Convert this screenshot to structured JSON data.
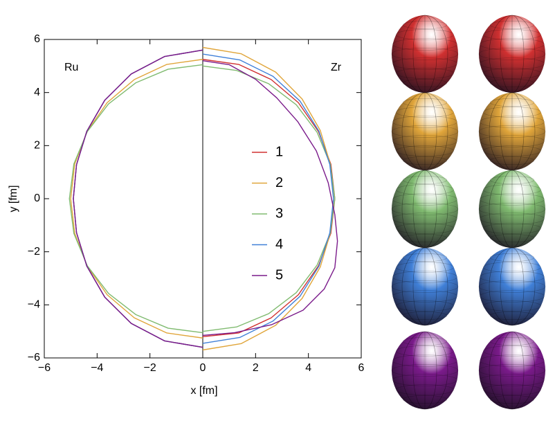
{
  "chart_data": {
    "type": "line",
    "ru_label": "Ru",
    "zr_label": "Zr",
    "xlabel": "x [fm]",
    "ylabel": "y [fm]",
    "xlim": [
      -6,
      6
    ],
    "ylim": [
      -6,
      6
    ],
    "xticks": [
      {
        "value": -6,
        "label": "−6"
      },
      {
        "value": -4,
        "label": "−4"
      },
      {
        "value": -2,
        "label": "−2"
      },
      0,
      2,
      4,
      6
    ],
    "yticks": [
      {
        "value": -6,
        "label": "−6"
      },
      {
        "value": -4,
        "label": "−4"
      },
      {
        "value": -2,
        "label": "−2"
      },
      0,
      2,
      4,
      6
    ],
    "series": [
      {
        "name": "1",
        "color": "#d03030",
        "ru_x": [
          0,
          -1.44,
          -2.71,
          -3.71,
          -4.39,
          -4.78,
          -4.9,
          -4.78,
          -4.39,
          -3.71,
          -2.71,
          -1.44,
          0
        ],
        "ru_y": [
          5.6,
          5.36,
          4.7,
          3.71,
          2.54,
          1.28,
          0,
          -1.28,
          -2.54,
          -3.71,
          -4.7,
          -5.36,
          -5.6
        ],
        "zr_x": [
          0,
          1.36,
          2.59,
          3.62,
          4.38,
          4.85,
          5.0,
          4.85,
          4.38,
          3.62,
          2.59,
          1.36,
          0
        ],
        "zr_y": [
          5.25,
          5.06,
          4.49,
          3.62,
          2.53,
          1.3,
          0,
          -1.3,
          -2.53,
          -3.62,
          -4.49,
          -5.06,
          -5.2
        ]
      },
      {
        "name": "2",
        "color": "#e0a53a",
        "ru_x": [
          0,
          -1.36,
          -2.59,
          -3.62,
          -4.38,
          -4.85,
          -5.0,
          -4.85,
          -4.38,
          -3.62,
          -2.59,
          -1.36,
          0
        ],
        "ru_y": [
          5.25,
          5.06,
          4.49,
          3.62,
          2.53,
          1.3,
          0,
          -1.3,
          -2.53,
          -3.62,
          -4.49,
          -5.06,
          -5.25
        ],
        "zr_x": [
          0,
          1.46,
          2.76,
          3.76,
          4.45,
          4.83,
          4.95,
          4.83,
          4.45,
          3.76,
          2.76,
          1.46,
          0
        ],
        "zr_y": [
          5.7,
          5.46,
          4.77,
          3.76,
          2.57,
          1.3,
          0,
          -1.3,
          -2.57,
          -3.76,
          -4.77,
          -5.46,
          -5.7
        ]
      },
      {
        "name": "3",
        "color": "#80bb70",
        "ru_x": [
          0,
          -1.31,
          -2.53,
          -3.57,
          -4.37,
          -4.88,
          -5.05,
          -4.88,
          -4.37,
          -3.57,
          -2.53,
          -1.31,
          0
        ],
        "ru_y": [
          5.05,
          4.88,
          4.37,
          3.57,
          2.53,
          1.31,
          0,
          -1.31,
          -2.53,
          -3.57,
          -4.37,
          -4.88,
          -5.05
        ],
        "zr_x": [
          0,
          1.29,
          2.5,
          3.54,
          4.33,
          4.83,
          5.0,
          4.83,
          4.33,
          3.54,
          2.5,
          1.29,
          0
        ],
        "zr_y": [
          5.0,
          4.83,
          4.33,
          3.54,
          2.5,
          1.29,
          0,
          -1.29,
          -2.5,
          -3.54,
          -4.33,
          -4.83,
          -5.0
        ]
      },
      {
        "name": "4",
        "color": "#4080d8",
        "ru_x": [
          0,
          -1.44,
          -2.71,
          -3.71,
          -4.39,
          -4.78,
          -4.9,
          -4.78,
          -4.39,
          -3.71,
          -2.71,
          -1.44,
          0
        ],
        "ru_y": [
          5.6,
          5.36,
          4.7,
          3.71,
          2.54,
          1.28,
          0,
          -1.28,
          -2.54,
          -3.71,
          -4.7,
          -5.36,
          -5.6
        ],
        "zr_x": [
          0,
          1.4,
          2.66,
          3.68,
          4.4,
          4.81,
          4.95,
          4.81,
          4.4,
          3.68,
          2.66,
          1.4,
          0
        ],
        "zr_y": [
          5.45,
          5.23,
          4.61,
          3.68,
          2.54,
          1.29,
          0,
          -1.29,
          -2.54,
          -3.68,
          -4.61,
          -5.23,
          -5.45
        ]
      },
      {
        "name": "5",
        "color": "#7a1a8a",
        "ru_x": [
          0,
          -1.44,
          -2.71,
          -3.71,
          -4.39,
          -4.78,
          -4.9,
          -4.78,
          -4.39,
          -3.71,
          -2.71,
          -1.44,
          0
        ],
        "ru_y": [
          5.6,
          5.36,
          4.7,
          3.71,
          2.54,
          1.28,
          0,
          -1.28,
          -2.54,
          -3.71,
          -4.7,
          -5.36,
          -5.6
        ],
        "zr_x": [
          0,
          1.0,
          2.0,
          2.8,
          3.6,
          4.3,
          4.75,
          5.0,
          5.1,
          5.0,
          4.6,
          3.8,
          2.6,
          1.2,
          0
        ],
        "zr_y": [
          5.2,
          5.05,
          4.5,
          3.8,
          2.9,
          1.8,
          0.6,
          -0.6,
          -1.6,
          -2.6,
          -3.4,
          -4.2,
          -4.75,
          -5.05,
          -5.15
        ]
      }
    ]
  }
}
